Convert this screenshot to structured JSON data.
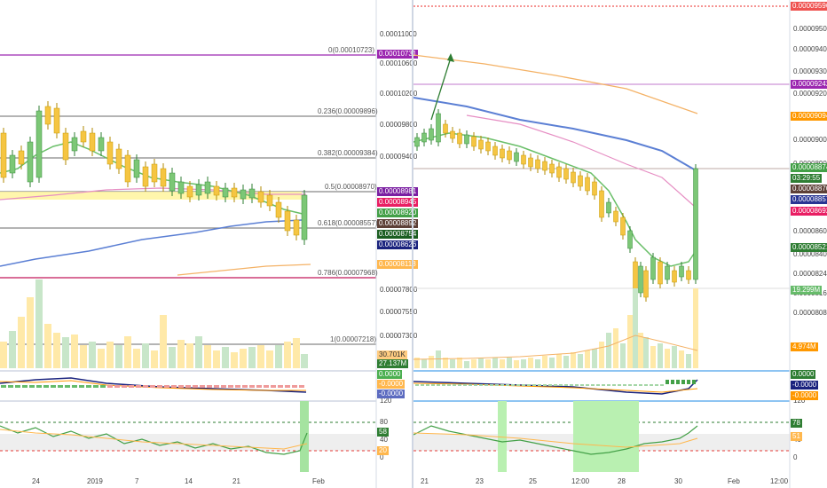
{
  "left": {
    "price_scale": [
      "0.00011000",
      "0.00010600",
      "0.00010200",
      "0.00009800",
      "0.00009400",
      "0.00008600",
      "0.00007800",
      "0.00007550",
      "0.00007300"
    ],
    "fib_levels": [
      {
        "label": "0(0.00010723)"
      },
      {
        "label": "0.236(0.00009896)"
      },
      {
        "label": "0.382(0.00009384)"
      },
      {
        "label": "0.5(0.00008970)"
      },
      {
        "label": "0.618(0.00008557)"
      },
      {
        "label": "0.786(0.00007968)"
      },
      {
        "label": "1(0.00007218)"
      }
    ],
    "price_tags": [
      {
        "text": "0.00010731",
        "bg": "#9c27b0",
        "fg": "#ffffff"
      },
      {
        "text": "0.00008981",
        "bg": "#7b1fa2",
        "fg": "#ffffff"
      },
      {
        "text": "0.00008945",
        "bg": "#e91e63",
        "fg": "#ffffff"
      },
      {
        "text": "0.00008920",
        "bg": "#43a047",
        "fg": "#ffffff"
      },
      {
        "text": "0.00008892",
        "bg": "#5d4037",
        "fg": "#ffffff"
      },
      {
        "text": "0.00008754",
        "bg": "#1b5e20",
        "fg": "#ffffff"
      },
      {
        "text": "0.00008626",
        "bg": "#1a237e",
        "fg": "#ffffff"
      },
      {
        "text": "0.00008118",
        "bg": "#ffb74d",
        "fg": "#ffffff"
      }
    ],
    "volume_tags": [
      {
        "text": "30.701K",
        "bg": "#ffcc80",
        "fg": "#333333"
      },
      {
        "text": "27.137M",
        "bg": "#2e7d32",
        "fg": "#ffffff"
      }
    ],
    "macd_tags": [
      {
        "text": "0.0000",
        "bg": "#4caf50",
        "fg": "#ffffff"
      },
      {
        "text": "-0.0000",
        "bg": "#ffb74d",
        "fg": "#ffffff"
      },
      {
        "text": "-0.0000",
        "bg": "#5c6bc0",
        "fg": "#ffffff"
      }
    ],
    "rsi_scale": [
      "120",
      "80",
      "40",
      "0"
    ],
    "rsi_tags": [
      {
        "text": "58",
        "bg": "#2e7d32",
        "fg": "#ffffff"
      },
      {
        "text": "20",
        "bg": "#ffb74d",
        "fg": "#ffffff"
      }
    ],
    "x_labels": [
      "24",
      "2019",
      "7",
      "14",
      "21",
      "Feb"
    ]
  },
  "right": {
    "price_scale": [
      "0.00009600",
      "0.00009500",
      "0.00009400",
      "0.00009300",
      "0.00009200",
      "0.00009000",
      "0.00008900",
      "0.00008600",
      "0.00008400",
      "0.00008240",
      "0.00008160",
      "0.00008080"
    ],
    "price_tags": [
      {
        "text": "0.00009596",
        "bg": "#ef5350",
        "fg": "#ffffff"
      },
      {
        "text": "0.00009242",
        "bg": "#9c27b0",
        "fg": "#ffffff"
      },
      {
        "text": "0.00009094",
        "bg": "#ff9800",
        "fg": "#ffffff"
      },
      {
        "text": "0.00008874",
        "bg": "#43a047",
        "fg": "#ffffff"
      },
      {
        "text": "03:29:55",
        "bg": "#2e7d32",
        "fg": "#ffffff"
      },
      {
        "text": "0.00008870",
        "bg": "#5d4037",
        "fg": "#ffffff"
      },
      {
        "text": "0.00008857",
        "bg": "#283593",
        "fg": "#ffffff"
      },
      {
        "text": "0.00008692",
        "bg": "#e91e63",
        "fg": "#ffffff"
      },
      {
        "text": "0.00008521",
        "bg": "#2e7d32",
        "fg": "#ffffff"
      }
    ],
    "volume_tags": [
      {
        "text": "19.299M",
        "bg": "#66bb6a",
        "fg": "#ffffff"
      },
      {
        "text": "4.974M",
        "bg": "#ff9800",
        "fg": "#ffffff"
      }
    ],
    "macd_tags": [
      {
        "text": "0.0000",
        "bg": "#2e7d32",
        "fg": "#ffffff"
      },
      {
        "text": "-0.0000",
        "bg": "#1a237e",
        "fg": "#ffffff"
      },
      {
        "text": "-0.0000",
        "bg": "#ff9800",
        "fg": "#ffffff"
      }
    ],
    "rsi_scale": [
      "120",
      "80",
      "40",
      "0"
    ],
    "rsi_tags": [
      {
        "text": "78",
        "bg": "#2e7d32",
        "fg": "#ffffff"
      },
      {
        "text": "51",
        "bg": "#ffb74d",
        "fg": "#ffffff"
      }
    ],
    "x_labels": [
      "21",
      "23",
      "25",
      "12:00",
      "28",
      "30",
      "Feb",
      "12:00"
    ]
  },
  "colors": {
    "up": "#26a69a",
    "up_bar": "#7cc776",
    "down_bar": "#f5c542",
    "ma_green": "#6abf69",
    "ma_blue": "#5b7fd4",
    "ma_orange": "#f4b266",
    "ma_pink": "#e68ec3",
    "grid": "#dfe3ea"
  }
}
